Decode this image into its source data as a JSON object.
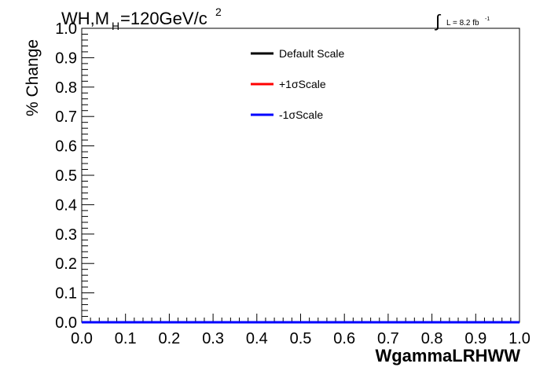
{
  "chart_data": {
    "type": "line",
    "title_parts": {
      "main": "WH,M",
      "subscript": "H",
      "rest": "=120GeV/c",
      "superscript": "2"
    },
    "luminosity": {
      "integral_symbol": "∫",
      "text": "L = 8.2 fb",
      "exponent": "-1"
    },
    "xlabel": "WgammaLRHWW",
    "ylabel": "% Change",
    "xlim": [
      0.0,
      1.0
    ],
    "ylim": [
      0.0,
      1.0
    ],
    "x_ticks": [
      "0.0",
      "0.1",
      "0.2",
      "0.3",
      "0.4",
      "0.5",
      "0.6",
      "0.7",
      "0.8",
      "0.9",
      "1.0"
    ],
    "y_ticks": [
      "0.0",
      "0.1",
      "0.2",
      "0.3",
      "0.4",
      "0.5",
      "0.6",
      "0.7",
      "0.8",
      "0.9",
      "1.0"
    ],
    "grid": false,
    "legend_position": "top-center",
    "series": [
      {
        "name": "Default Scale",
        "color": "#000000",
        "x": [
          0.0,
          1.0
        ],
        "y": [
          0.0,
          0.0
        ]
      },
      {
        "name": "+1σScale",
        "color": "#ff0000",
        "x": [
          0.0,
          1.0
        ],
        "y": [
          0.0,
          0.0
        ]
      },
      {
        "name": "-1σScale",
        "color": "#0000ff",
        "x": [
          0.0,
          1.0
        ],
        "y": [
          0.0,
          0.0
        ]
      }
    ]
  }
}
